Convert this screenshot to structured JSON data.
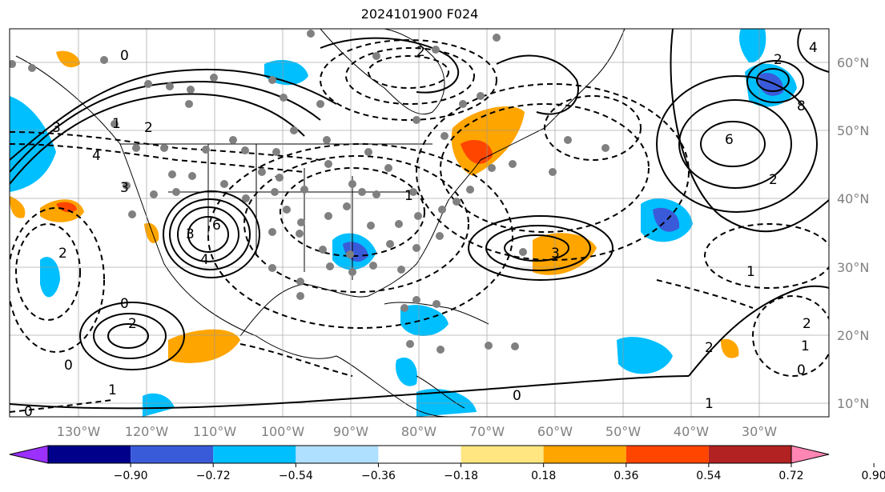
{
  "title": "2024101900 F024",
  "lat_ticks": [
    "60°N",
    "50°N",
    "40°N",
    "30°N",
    "20°N",
    "10°N"
  ],
  "lon_ticks": [
    "130°W",
    "120°W",
    "110°W",
    "100°W",
    "90°W",
    "80°W",
    "70°W",
    "60°W",
    "50°W",
    "40°W",
    "30°W"
  ],
  "colorbar": {
    "ticks": [
      "−0.90",
      "−0.72",
      "−0.54",
      "−0.36",
      "−0.18",
      "0.18",
      "0.36",
      "0.54",
      "0.72",
      "0.90"
    ],
    "colors": [
      "#9b30ff",
      "#00008b",
      "#3a5bd9",
      "#00bfff",
      "#b0e0ff",
      "#ffffff",
      "#ffe680",
      "#ffa500",
      "#ff4500",
      "#b22222",
      "#ff85b3"
    ]
  },
  "contour_labels": [
    "0",
    "3",
    "2",
    "1",
    "6",
    "3",
    "4",
    "3",
    "6",
    "8",
    "2",
    "2",
    "4",
    "4",
    "1",
    "2",
    "2",
    "1",
    "0",
    "3",
    "0",
    "2",
    "2",
    "0",
    "1",
    "0",
    "1",
    "2",
    "1",
    "0"
  ]
}
